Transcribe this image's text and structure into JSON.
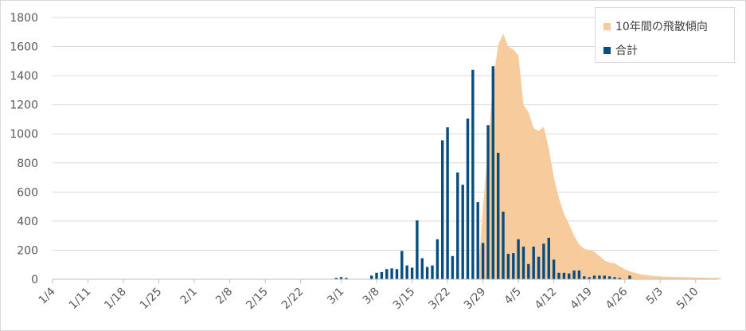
{
  "chart_data": {
    "type": "bar",
    "title": "",
    "xlabel": "",
    "ylabel": "",
    "ylim": [
      0,
      1800
    ],
    "yticks": [
      0,
      200,
      400,
      600,
      800,
      1000,
      1200,
      1400,
      1600,
      1800
    ],
    "grid": "horizontal",
    "legend_position": "top-right",
    "x_tick_labels": [
      "1/4",
      "1/11",
      "1/18",
      "1/25",
      "2/1",
      "2/8",
      "2/15",
      "2/22",
      "3/1",
      "3/8",
      "3/15",
      "3/22",
      "3/29",
      "4/5",
      "4/12",
      "4/19",
      "4/26",
      "5/3",
      "5/10"
    ],
    "series": [
      {
        "name": "10年間の飛散傾向",
        "type": "area",
        "color": "#F8CB9C",
        "x": [
          "3/28",
          "3/29",
          "3/30",
          "3/31",
          "4/1",
          "4/2",
          "4/3",
          "4/4",
          "4/5",
          "4/6",
          "4/7",
          "4/8",
          "4/9",
          "4/10",
          "4/11",
          "4/12",
          "4/13",
          "4/14",
          "4/15",
          "4/16",
          "4/17",
          "4/18",
          "4/19",
          "4/20",
          "4/21",
          "4/22",
          "4/23",
          "4/24",
          "4/25",
          "4/26",
          "4/27",
          "4/28",
          "4/29",
          "4/30",
          "5/1",
          "5/2",
          "5/3",
          "5/4",
          "5/5",
          "5/6",
          "5/7",
          "5/8",
          "5/9",
          "5/10",
          "5/11",
          "5/12",
          "5/13",
          "5/14",
          "5/15"
        ],
        "values": [
          0,
          500,
          900,
          1370,
          1610,
          1690,
          1600,
          1580,
          1540,
          1200,
          1150,
          1040,
          1020,
          1050,
          900,
          700,
          560,
          450,
          380,
          300,
          240,
          210,
          200,
          190,
          160,
          130,
          115,
          110,
          90,
          70,
          55,
          45,
          35,
          30,
          25,
          22,
          20,
          18,
          17,
          16,
          15,
          14,
          13,
          12,
          12,
          11,
          10,
          10,
          10
        ]
      },
      {
        "name": "合計",
        "type": "bar",
        "color": "#084D82",
        "x": [
          "2/29",
          "3/1",
          "3/2",
          "3/7",
          "3/8",
          "3/9",
          "3/10",
          "3/11",
          "3/12",
          "3/13",
          "3/14",
          "3/15",
          "3/16",
          "3/17",
          "3/18",
          "3/19",
          "3/20",
          "3/21",
          "3/22",
          "3/23",
          "3/24",
          "3/25",
          "3/26",
          "3/27",
          "3/28",
          "3/29",
          "3/30",
          "3/31",
          "4/1",
          "4/2",
          "4/3",
          "4/4",
          "4/5",
          "4/6",
          "4/7",
          "4/8",
          "4/9",
          "4/10",
          "4/11",
          "4/12",
          "4/13",
          "4/14",
          "4/15",
          "4/16",
          "4/17",
          "4/18",
          "4/19",
          "4/20",
          "4/21",
          "4/22",
          "4/23",
          "4/24",
          "4/25",
          "4/27"
        ],
        "values": [
          10,
          15,
          10,
          25,
          45,
          50,
          70,
          75,
          70,
          195,
          95,
          80,
          405,
          145,
          85,
          95,
          275,
          955,
          1045,
          160,
          735,
          650,
          1105,
          1440,
          530,
          250,
          1060,
          1465,
          870,
          465,
          175,
          180,
          275,
          225,
          105,
          225,
          155,
          245,
          285,
          135,
          45,
          45,
          40,
          60,
          60,
          20,
          15,
          25,
          25,
          25,
          20,
          15,
          10,
          25
        ]
      }
    ]
  }
}
